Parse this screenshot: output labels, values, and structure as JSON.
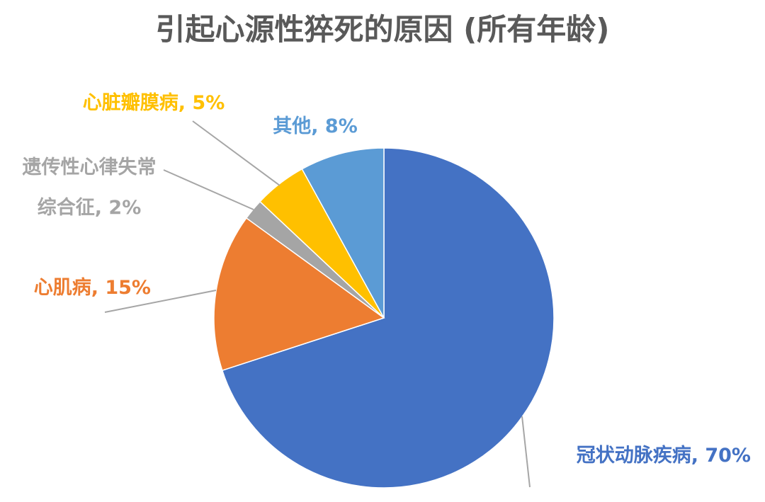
{
  "chart_data": {
    "type": "pie",
    "title": "引起心源性猝死的原因 (所有年龄)",
    "slices": [
      {
        "label": "冠状动脉疾病",
        "value": 70,
        "display": "冠状动脉疾病, 70%",
        "color": "#4472c4"
      },
      {
        "label": "心肌病",
        "value": 15,
        "display": "心肌病, 15%",
        "color": "#ed7d31"
      },
      {
        "label": "遗传性心律失常综合征",
        "value": 2,
        "display_lines": [
          "遗传性心律失常",
          "综合征, 2%"
        ],
        "color": "#a5a5a5"
      },
      {
        "label": "心脏瓣膜病",
        "value": 5,
        "display": "心脏瓣膜病, 5%",
        "color": "#ffc000"
      },
      {
        "label": "其他",
        "value": 8,
        "display": "其他, 8%",
        "color": "#5b9bd5"
      }
    ],
    "start_angle_deg": 0,
    "direction": "clockwise",
    "legend": "none",
    "data_labels": "outside with leader lines"
  }
}
